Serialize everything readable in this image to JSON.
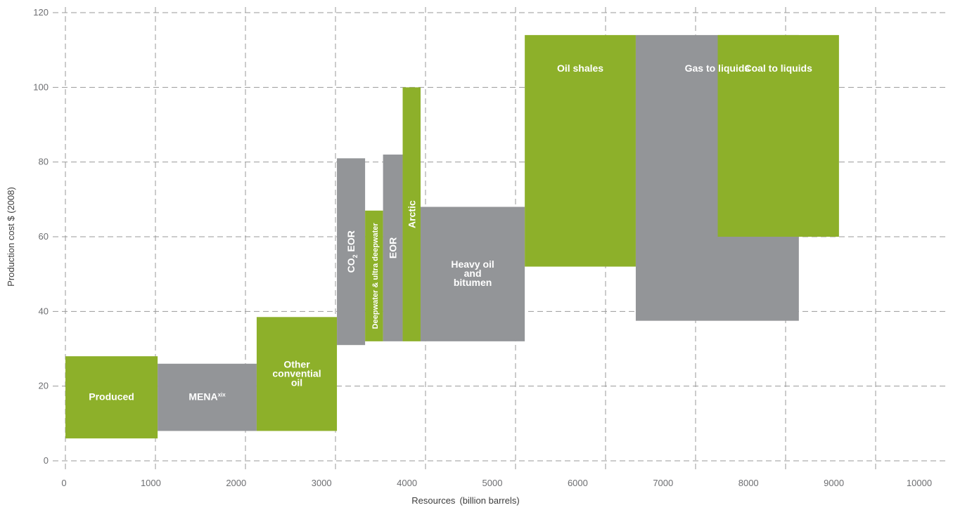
{
  "chart_data": {
    "type": "bar",
    "subtype": "cost-supply-curve",
    "title": "",
    "xlabel": "Resources",
    "xlabel_unit": "(billion barrels)",
    "ylabel": "Production cost $ (2008)",
    "xlim": [
      0,
      10000
    ],
    "ylim": [
      0,
      120
    ],
    "x_ticks": [
      "0",
      "1000",
      "2000",
      "3000",
      "4000",
      "5000",
      "6000",
      "7000",
      "8000",
      "9000",
      "10000"
    ],
    "y_ticks": [
      "0",
      "20",
      "40",
      "60",
      "80",
      "100",
      "120"
    ],
    "grid": true,
    "colors": {
      "green": "#8db02a",
      "grey": "#939598"
    },
    "bars": [
      {
        "label": "Produced",
        "x0": 0,
        "x1": 1080,
        "y0": 6,
        "y1": 28,
        "color": "green"
      },
      {
        "label": "MENA",
        "sup": "xix",
        "x0": 1080,
        "x1": 2240,
        "y0": 8,
        "y1": 26,
        "color": "grey"
      },
      {
        "label": "Other convential oil",
        "x0": 2240,
        "x1": 3180,
        "y0": 8,
        "y1": 38.5,
        "color": "green"
      },
      {
        "label": "CO",
        "sub": "2",
        "label_suffix": " EOR",
        "x0": 3180,
        "x1": 3510,
        "y0": 31,
        "y1": 81,
        "color": "grey",
        "vertical": true
      },
      {
        "label": "Deepwater & ultra deepwater",
        "x0": 3510,
        "x1": 3720,
        "y0": 32,
        "y1": 67,
        "color": "green",
        "vertical": true,
        "small": true
      },
      {
        "label": "EOR",
        "x0": 3720,
        "x1": 3950,
        "y0": 32,
        "y1": 82,
        "color": "grey",
        "vertical": true
      },
      {
        "label": "Arctic",
        "x0": 3950,
        "x1": 4160,
        "y0": 32,
        "y1": 100,
        "color": "green",
        "vertical": true
      },
      {
        "label": "Heavy oil and bitumen",
        "x0": 4160,
        "x1": 5380,
        "y0": 32,
        "y1": 68,
        "color": "grey"
      },
      {
        "label": "Oil shales",
        "x0": 5380,
        "x1": 6680,
        "y0": 52,
        "y1": 114,
        "color": "green"
      },
      {
        "label": "Gas to liquids",
        "x0": 6680,
        "x1": 8590,
        "y0": 37.5,
        "y1": 114,
        "color": "grey"
      },
      {
        "label": "Coal to liquids",
        "x0": 7640,
        "x1": 9060,
        "y0": 60,
        "y1": 114,
        "color": "green"
      }
    ]
  }
}
